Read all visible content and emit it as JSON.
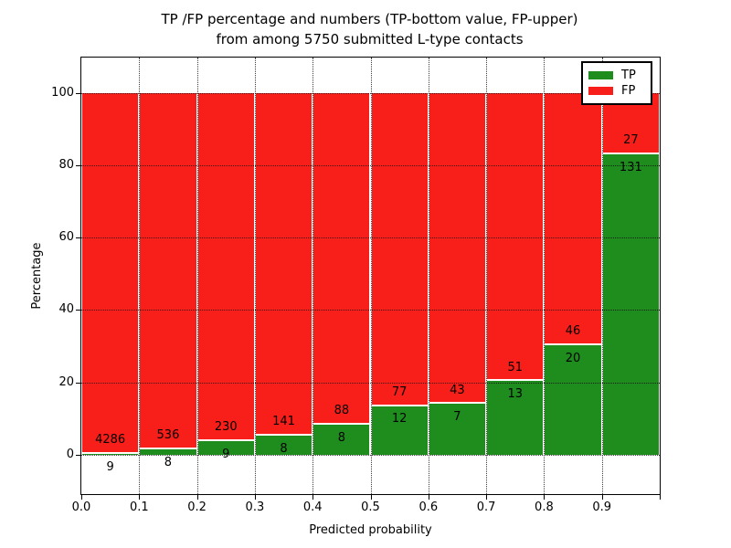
{
  "figure": {
    "title_line1": "TP /FP percentage and numbers (TP-bottom value, FP-upper)",
    "title_line2": "from among 5750 submitted L-type contacts",
    "xlabel": "Predicted probability",
    "ylabel": "Percentage"
  },
  "legend": {
    "position": "upper right",
    "items": [
      {
        "label": "TP",
        "color": "#1f8c1e"
      },
      {
        "label": "FP",
        "color": "#f81e19"
      }
    ]
  },
  "chart_data": {
    "type": "bar",
    "stacked": true,
    "title": "TP /FP percentage and numbers (TP-bottom value, FP-upper)\nfrom among 5750 submitted L-type contacts",
    "xlabel": "Predicted probability",
    "ylabel": "Percentage",
    "total_contacts": 5750,
    "bin_starts": [
      0.0,
      0.1,
      0.2,
      0.3,
      0.4,
      0.5,
      0.6,
      0.7,
      0.8,
      0.9
    ],
    "bin_width": 0.1,
    "categories": [
      "0.0-0.1",
      "0.1-0.2",
      "0.2-0.3",
      "0.3-0.4",
      "0.4-0.5",
      "0.5-0.6",
      "0.6-0.7",
      "0.7-0.8",
      "0.8-0.9",
      "0.9-1.0"
    ],
    "series": [
      {
        "name": "TP",
        "color": "#1f8c1e",
        "counts": [
          9,
          8,
          9,
          8,
          8,
          12,
          7,
          13,
          20,
          131
        ],
        "percent": [
          0.21,
          1.47,
          3.77,
          5.37,
          8.33,
          13.48,
          14.0,
          20.31,
          30.3,
          82.91
        ]
      },
      {
        "name": "FP",
        "color": "#f81e19",
        "counts": [
          4286,
          536,
          230,
          141,
          88,
          77,
          43,
          51,
          46,
          27
        ],
        "percent": [
          99.79,
          98.53,
          96.23,
          94.63,
          91.67,
          86.52,
          86.0,
          79.69,
          69.7,
          17.09
        ]
      }
    ],
    "xticks": [
      "0.0",
      "0.1",
      "0.2",
      "0.3",
      "0.4",
      "0.5",
      "0.6",
      "0.7",
      "0.8",
      "0.9"
    ],
    "yticks": [
      0,
      20,
      40,
      60,
      80,
      100
    ],
    "xlim": [
      0.0,
      1.0
    ],
    "ylim": [
      -10.8,
      109.7
    ],
    "grid": "dotted",
    "legend_position": "upper right"
  }
}
